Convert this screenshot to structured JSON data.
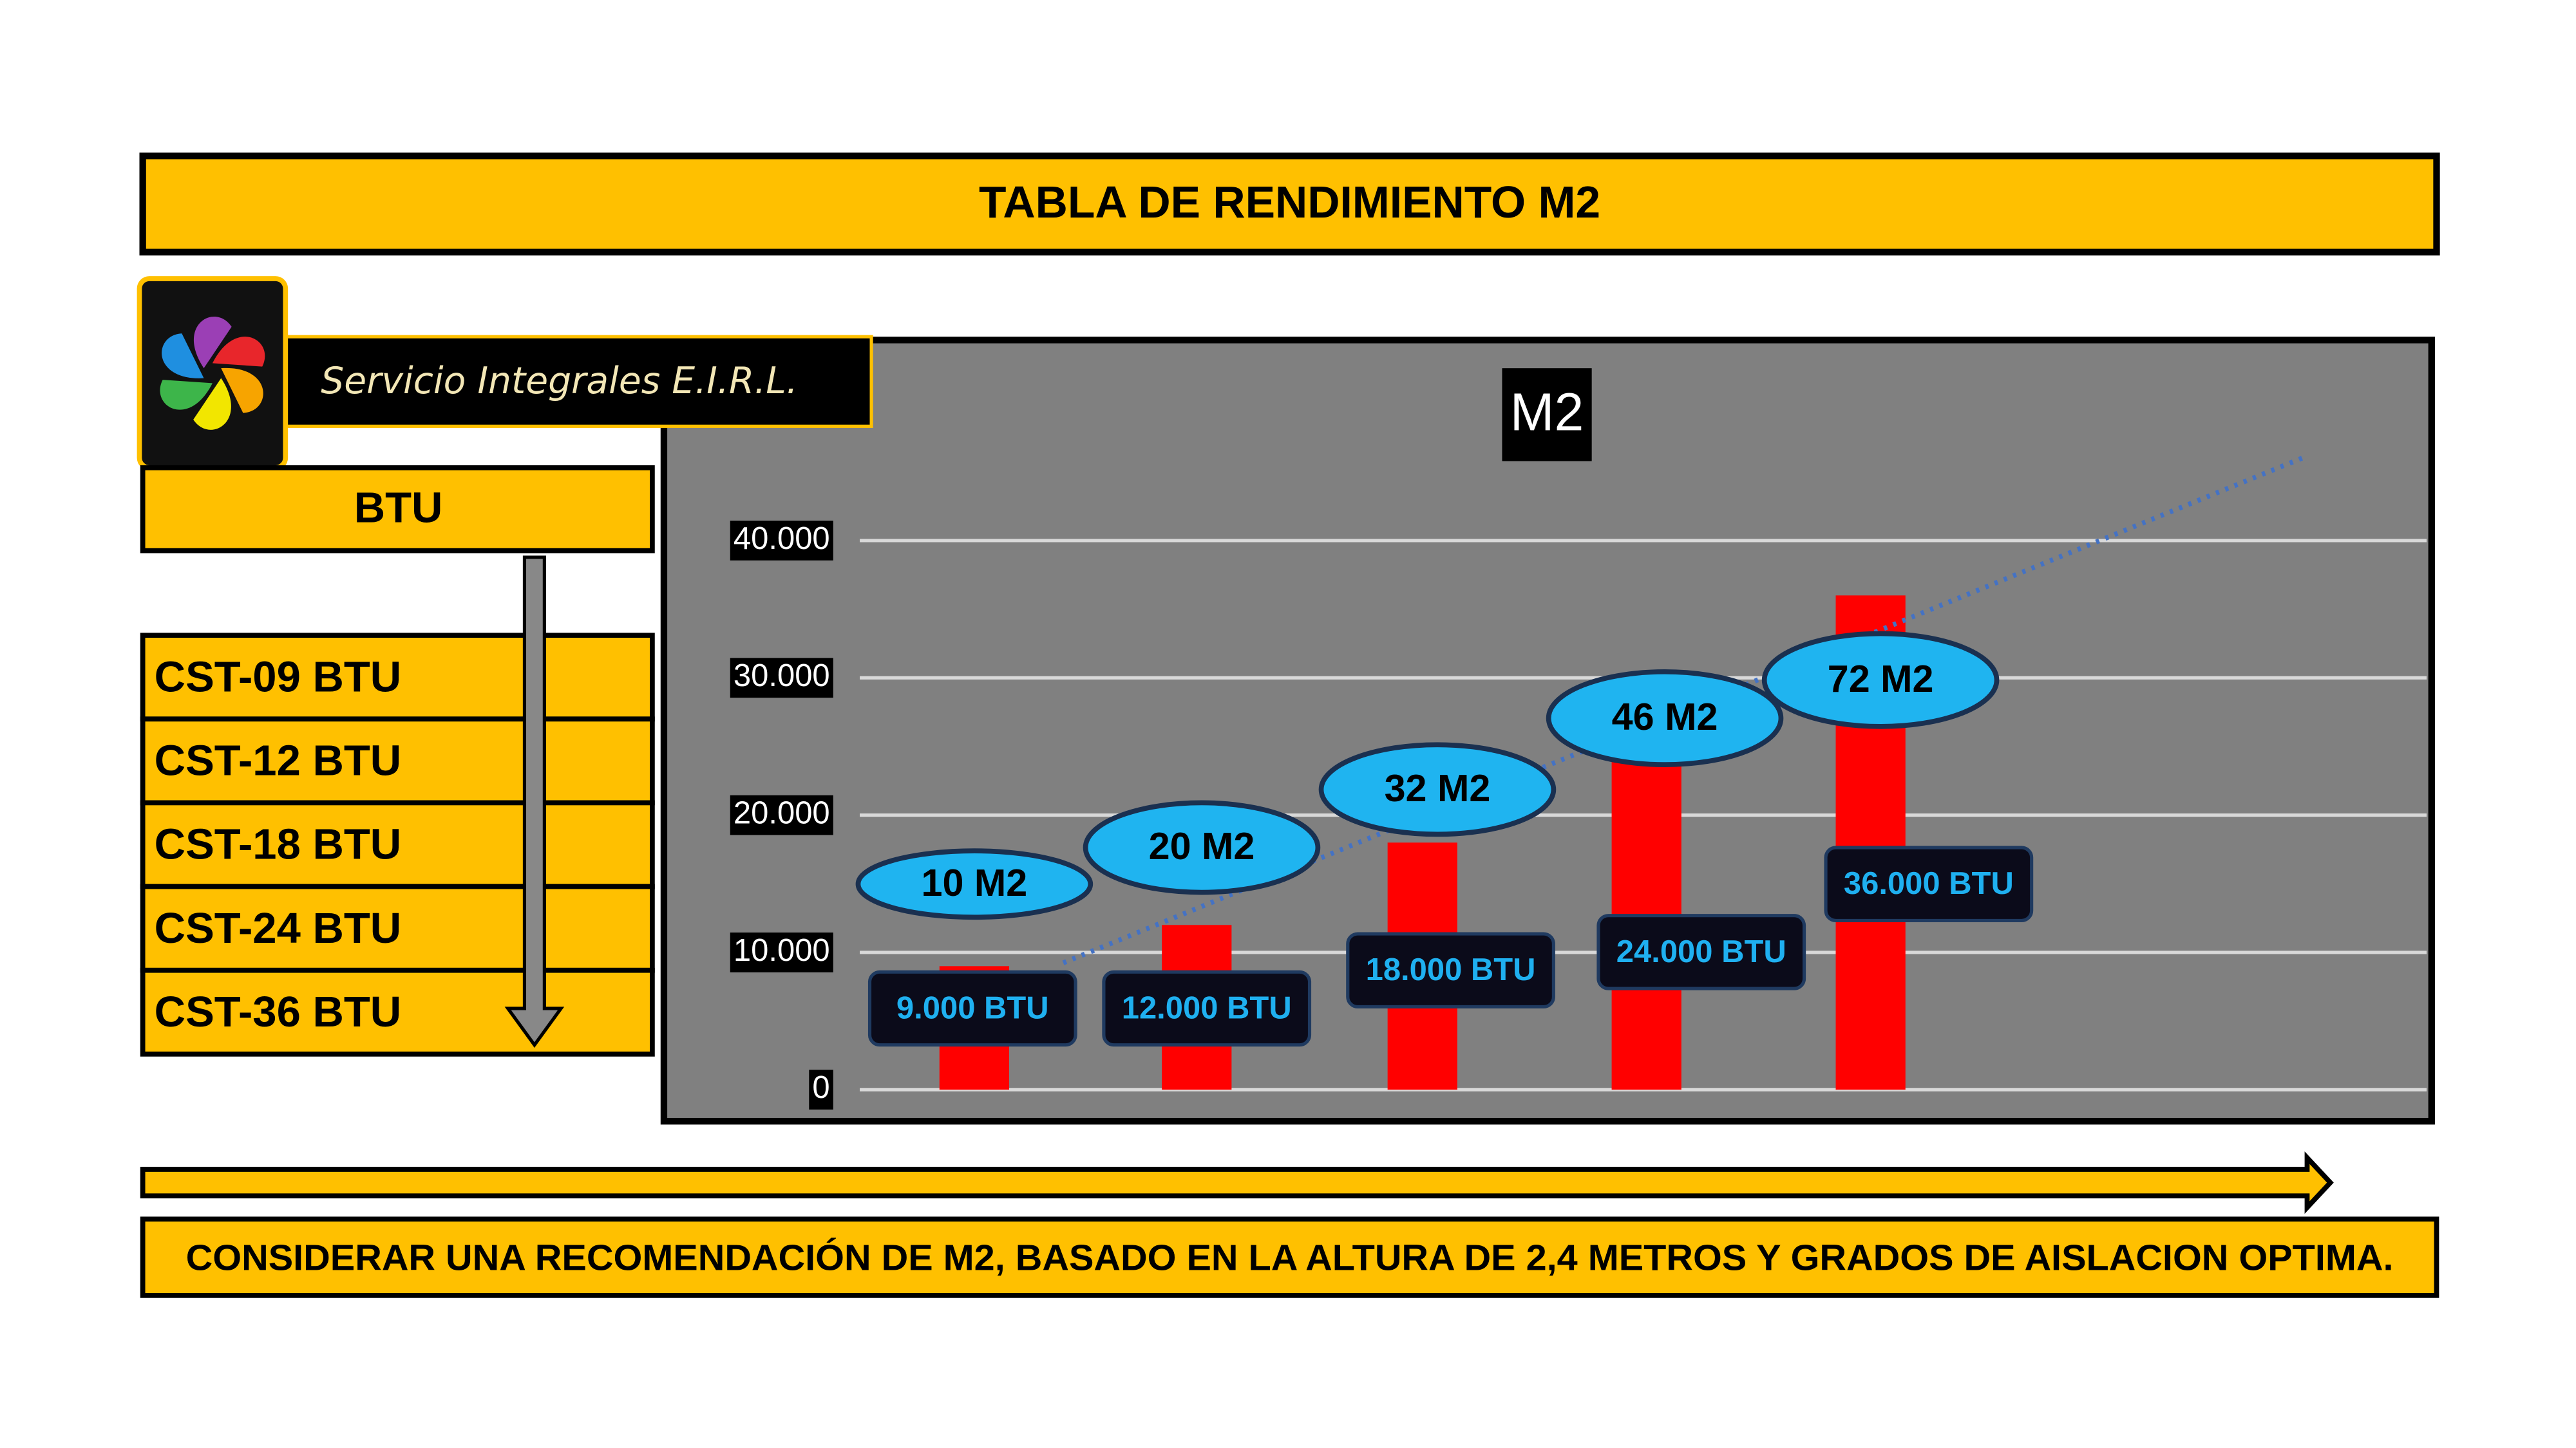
{
  "header": {
    "title": "TABLA DE RENDIMIENTO M2"
  },
  "company": "Servicio Integrales E.I.R.L.",
  "side_panel": {
    "title": "BTU",
    "models": [
      "CST-09 BTU",
      "CST-12 BTU",
      "CST-18 BTU",
      "CST-24 BTU",
      "CST-36 BTU"
    ]
  },
  "footer": "CONSIDERAR  UNA RECOMENDACIÓN  DE M2, BASADO EN LA ALTURA DE 2,4 METROS Y GRADOS DE AISLACION OPTIMA.",
  "chart_data": {
    "type": "bar",
    "title": "M2",
    "categories": [
      null,
      null,
      null,
      null,
      null
    ],
    "values": [
      9000,
      12000,
      18000,
      24000,
      36000
    ],
    "value_labels": [
      "9.000 BTU",
      "12.000 BTU",
      "18.000 BTU",
      "24.000 BTU",
      "36.000 BTU"
    ],
    "annotations": [
      "10 M2",
      "20 M2",
      "32 M2",
      "46 M2",
      "72 M2"
    ],
    "color": "#ff0000",
    "ylim": [
      0,
      54000
    ],
    "yticks": [
      0,
      {
        "value": 10000,
        "label": "10.000"
      },
      {
        "value": 20000,
        "label": "20.000"
      },
      {
        "value": 30000,
        "label": "30.000"
      },
      {
        "value": 40000,
        "label": "40.000"
      }
    ],
    "grid": true,
    "trendline": true
  }
}
